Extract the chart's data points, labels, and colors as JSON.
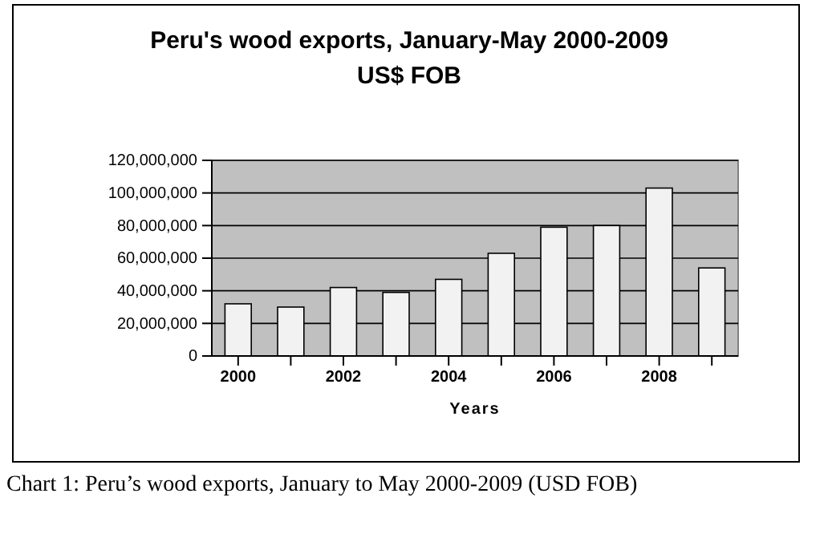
{
  "chart_data": {
    "type": "bar",
    "title": "Peru's wood exports, January-May 2000-2009",
    "subtitle": "US$ FOB",
    "xlabel": "Years",
    "categories": [
      "2000",
      null,
      "2002",
      null,
      "2004",
      null,
      "2006",
      null,
      "2008",
      null
    ],
    "values": [
      32000000,
      30000000,
      42000000,
      39000000,
      47000000,
      63000000,
      79000000,
      80000000,
      103000000,
      54000000
    ],
    "color": "#f2f2f2",
    "ylim": [
      0,
      120000000
    ],
    "yticks": [
      {
        "value": 0,
        "label": "0"
      },
      {
        "value": 20000000,
        "label": "20,000,000"
      },
      {
        "value": 40000000,
        "label": "40,000,000"
      },
      {
        "value": 60000000,
        "label": "60,000,000"
      },
      {
        "value": 80000000,
        "label": "80,000,000"
      },
      {
        "value": 100000000,
        "label": "100,000,000"
      },
      {
        "value": 120000000,
        "label": "120,000,000"
      }
    ],
    "grid": "y",
    "annotations": [
      "Chart 1: Peru’s wood exports, January to May 2000-2009 (USD FOB)"
    ]
  }
}
